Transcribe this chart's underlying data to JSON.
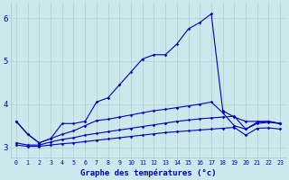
{
  "hours": [
    0,
    1,
    2,
    3,
    4,
    5,
    6,
    7,
    8,
    9,
    10,
    11,
    12,
    13,
    14,
    15,
    16,
    17,
    18,
    19,
    20,
    21,
    22,
    23
  ],
  "line_main": [
    3.6,
    3.3,
    3.1,
    3.2,
    3.55,
    3.55,
    3.6,
    4.05,
    4.15,
    4.45,
    4.75,
    5.05,
    5.15,
    5.15,
    5.4,
    5.75,
    5.9,
    6.1,
    3.85,
    3.7,
    3.6,
    3.6,
    3.6,
    3.55
  ],
  "line_a": [
    3.6,
    3.3,
    3.1,
    3.2,
    3.3,
    3.38,
    3.5,
    3.62,
    3.65,
    3.7,
    3.75,
    3.8,
    3.85,
    3.88,
    3.92,
    3.96,
    4.0,
    4.05,
    3.8,
    3.5,
    3.42,
    3.55,
    3.58,
    3.55
  ],
  "line_b": [
    3.1,
    3.05,
    3.05,
    3.12,
    3.18,
    3.22,
    3.28,
    3.32,
    3.36,
    3.4,
    3.44,
    3.48,
    3.52,
    3.56,
    3.6,
    3.63,
    3.66,
    3.68,
    3.7,
    3.72,
    3.42,
    3.58,
    3.6,
    3.55
  ],
  "line_c": [
    3.05,
    3.02,
    3.02,
    3.05,
    3.08,
    3.1,
    3.13,
    3.16,
    3.19,
    3.22,
    3.25,
    3.28,
    3.31,
    3.34,
    3.36,
    3.38,
    3.4,
    3.42,
    3.44,
    3.46,
    3.28,
    3.44,
    3.45,
    3.42
  ],
  "line_color": "#0000bb",
  "bg_color": "#cce8ec",
  "grid_color": "#aacccc",
  "xlabel": "Graphe des températures (°c)",
  "xlabel_color": "#0000bb",
  "tick_color": "#0000bb",
  "ylim": [
    2.75,
    6.35
  ],
  "xlim": [
    -0.5,
    23.5
  ],
  "yticks": [
    3,
    4,
    5,
    6
  ],
  "xticks": [
    0,
    1,
    2,
    3,
    4,
    5,
    6,
    7,
    8,
    9,
    10,
    11,
    12,
    13,
    14,
    15,
    16,
    17,
    18,
    19,
    20,
    21,
    22,
    23
  ]
}
